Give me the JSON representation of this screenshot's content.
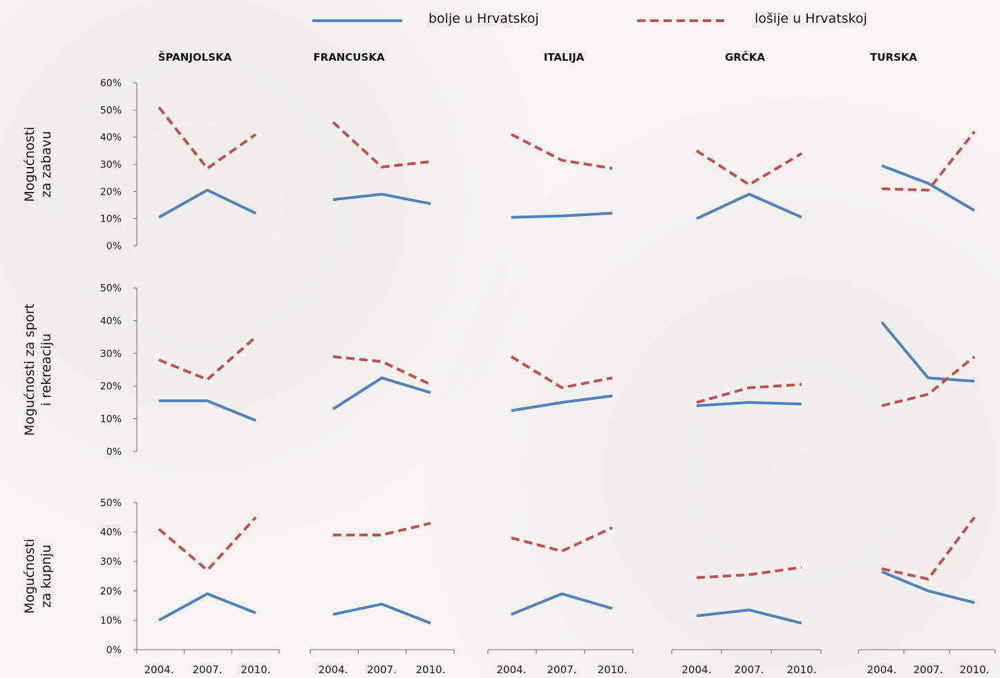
{
  "chart_data": {
    "type": "line",
    "legend": {
      "position": "top",
      "entries": [
        {
          "name": "bolje u Hrvatskoj",
          "color": "#4f81bd",
          "style": "solid"
        },
        {
          "name": "lošije u Hrvatskoj",
          "color": "#c0504d",
          "style": "dashed"
        }
      ]
    },
    "countries": [
      "ŠPANJOLSKA",
      "FRANCUSKA",
      "ITALIJA",
      "GRČKA",
      "TURSKA"
    ],
    "x": [
      "2004.",
      "2007.",
      "2010."
    ],
    "rows": [
      {
        "ylabel": [
          "Mogućnosti",
          "za zabavu"
        ],
        "ylim": [
          0,
          60
        ],
        "yticks": [
          "0%",
          "10%",
          "20%",
          "30%",
          "40%",
          "50%",
          "60%"
        ],
        "panels": [
          {
            "bolje": [
              10.5,
              20.5,
              12
            ],
            "losije": [
              51,
              28.5,
              41
            ]
          },
          {
            "bolje": [
              17,
              19,
              15.5
            ],
            "losije": [
              45.5,
              29,
              31
            ]
          },
          {
            "bolje": [
              10.5,
              11,
              12
            ],
            "losije": [
              41,
              31.5,
              28.5
            ]
          },
          {
            "bolje": [
              10,
              19,
              10.5
            ],
            "losije": [
              35,
              22.5,
              34
            ]
          },
          {
            "bolje": [
              29.5,
              23,
              13
            ],
            "losije": [
              21,
              20.5,
              42
            ]
          }
        ]
      },
      {
        "ylabel": [
          "Mogućnosti za sport",
          "i rekreaciju"
        ],
        "ylim": [
          0,
          50
        ],
        "yticks": [
          "0%",
          "10%",
          "20%",
          "30%",
          "40%",
          "50%"
        ],
        "panels": [
          {
            "bolje": [
              15.5,
              15.5,
              9.5
            ],
            "losije": [
              28,
              22,
              35
            ]
          },
          {
            "bolje": [
              13,
              22.5,
              18
            ],
            "losije": [
              29,
              27.5,
              20.5
            ]
          },
          {
            "bolje": [
              12.5,
              15,
              17
            ],
            "losije": [
              29,
              19.5,
              22.5
            ]
          },
          {
            "bolje": [
              14,
              15,
              14.5
            ],
            "losije": [
              15,
              19.5,
              20.5
            ]
          },
          {
            "bolje": [
              39.5,
              22.5,
              21.5
            ],
            "losije": [
              14,
              17.5,
              29
            ]
          }
        ]
      },
      {
        "ylabel": [
          "Mogućnosti",
          "za kupnju"
        ],
        "ylim": [
          0,
          50
        ],
        "yticks": [
          "0%",
          "10%",
          "20%",
          "30%",
          "40%",
          "50%"
        ],
        "panels": [
          {
            "bolje": [
              10,
              19,
              12.5
            ],
            "losije": [
              41,
              27,
              45
            ]
          },
          {
            "bolje": [
              12,
              15.5,
              9
            ],
            "losije": [
              39,
              39,
              43
            ]
          },
          {
            "bolje": [
              12,
              19,
              14
            ],
            "losije": [
              38,
              33.5,
              41.5
            ]
          },
          {
            "bolje": [
              11.5,
              13.5,
              9
            ],
            "losije": [
              24.5,
              25.5,
              28
            ]
          },
          {
            "bolje": [
              26.5,
              20,
              16
            ],
            "losije": [
              27.5,
              24,
              45
            ]
          }
        ]
      }
    ]
  }
}
